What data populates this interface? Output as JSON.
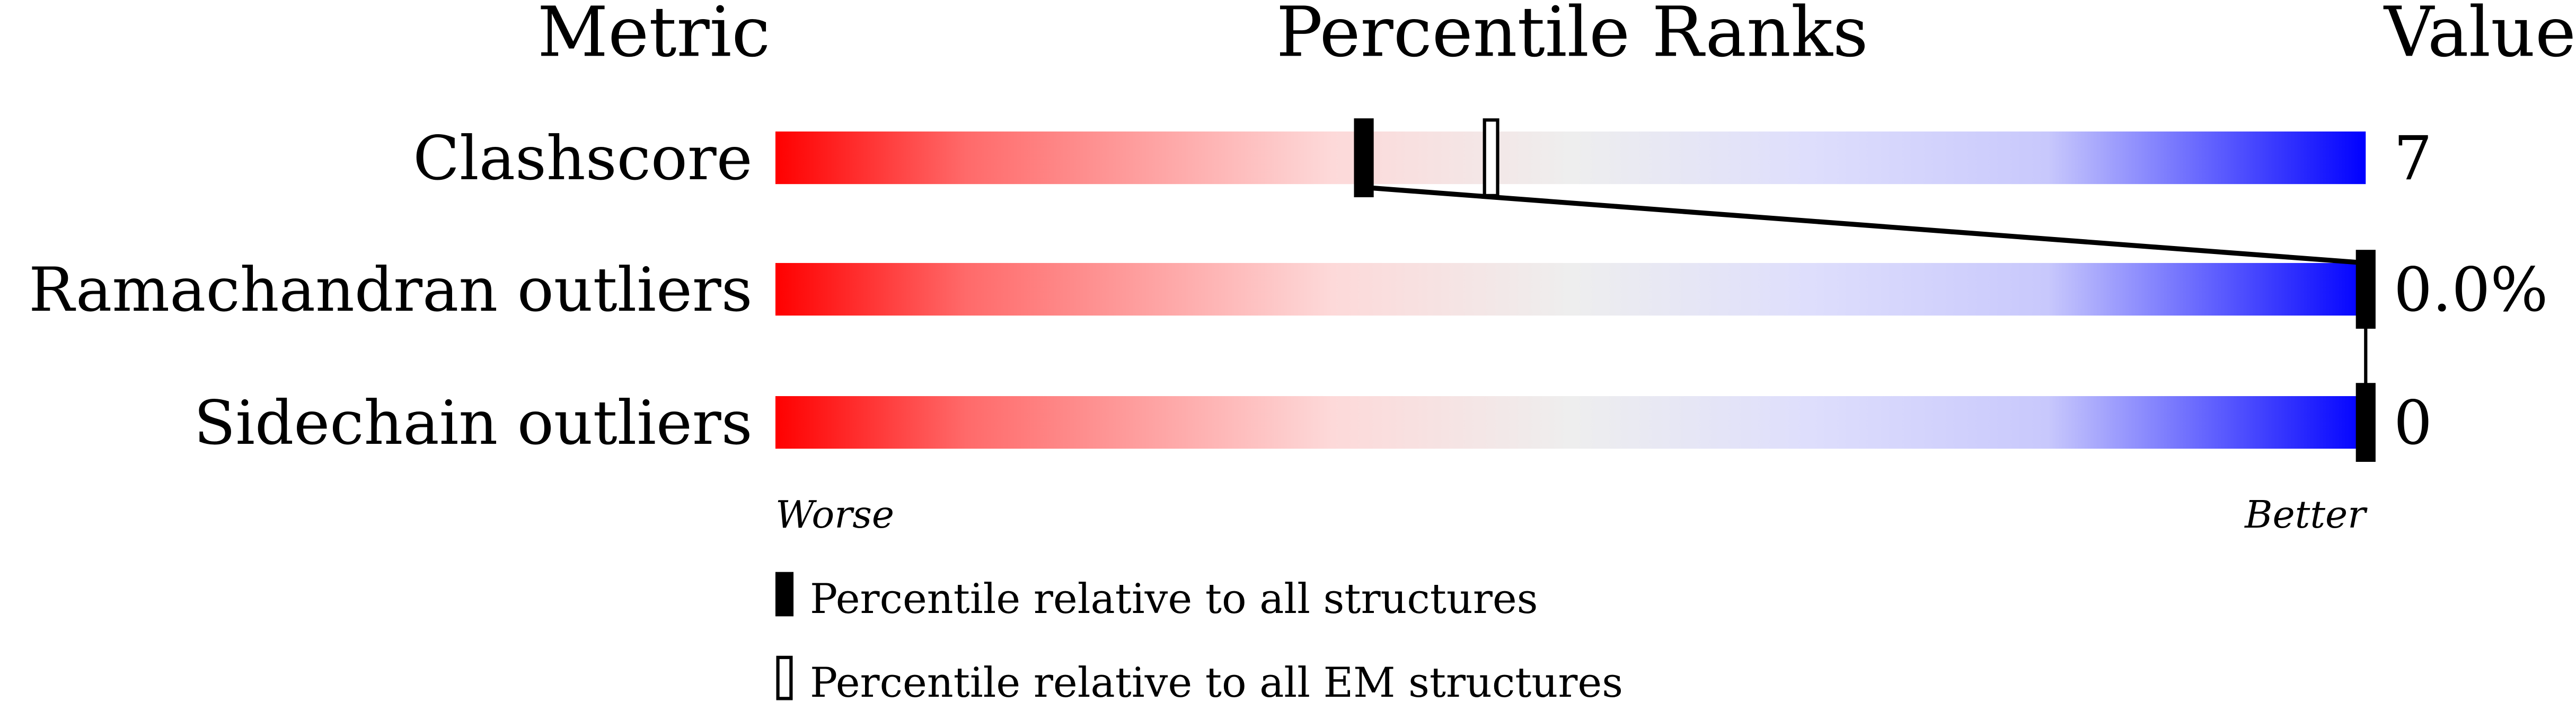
{
  "chart_data": {
    "type": "percentile-bar",
    "headers": {
      "metric": "Metric",
      "ranks": "Percentile Ranks",
      "value": "Value"
    },
    "xlim": [
      0,
      100
    ],
    "rows": [
      {
        "metric": "Clashscore",
        "value": "7",
        "percentile_all": 37,
        "percentile_em": 45
      },
      {
        "metric": "Ramachandran outliers",
        "value": "0.0%",
        "percentile_all": 100,
        "percentile_em": 100
      },
      {
        "metric": "Sidechain outliers",
        "value": "0",
        "percentile_all": 100,
        "percentile_em": 100
      }
    ],
    "axis_left_label": "Worse",
    "axis_right_label": "Better",
    "legend": {
      "all": "Percentile relative to all structures",
      "em": "Percentile relative to all EM structures"
    },
    "colors": {
      "worse": "#ff0000",
      "middle": "#eeeeee",
      "better": "#0000ff"
    }
  }
}
